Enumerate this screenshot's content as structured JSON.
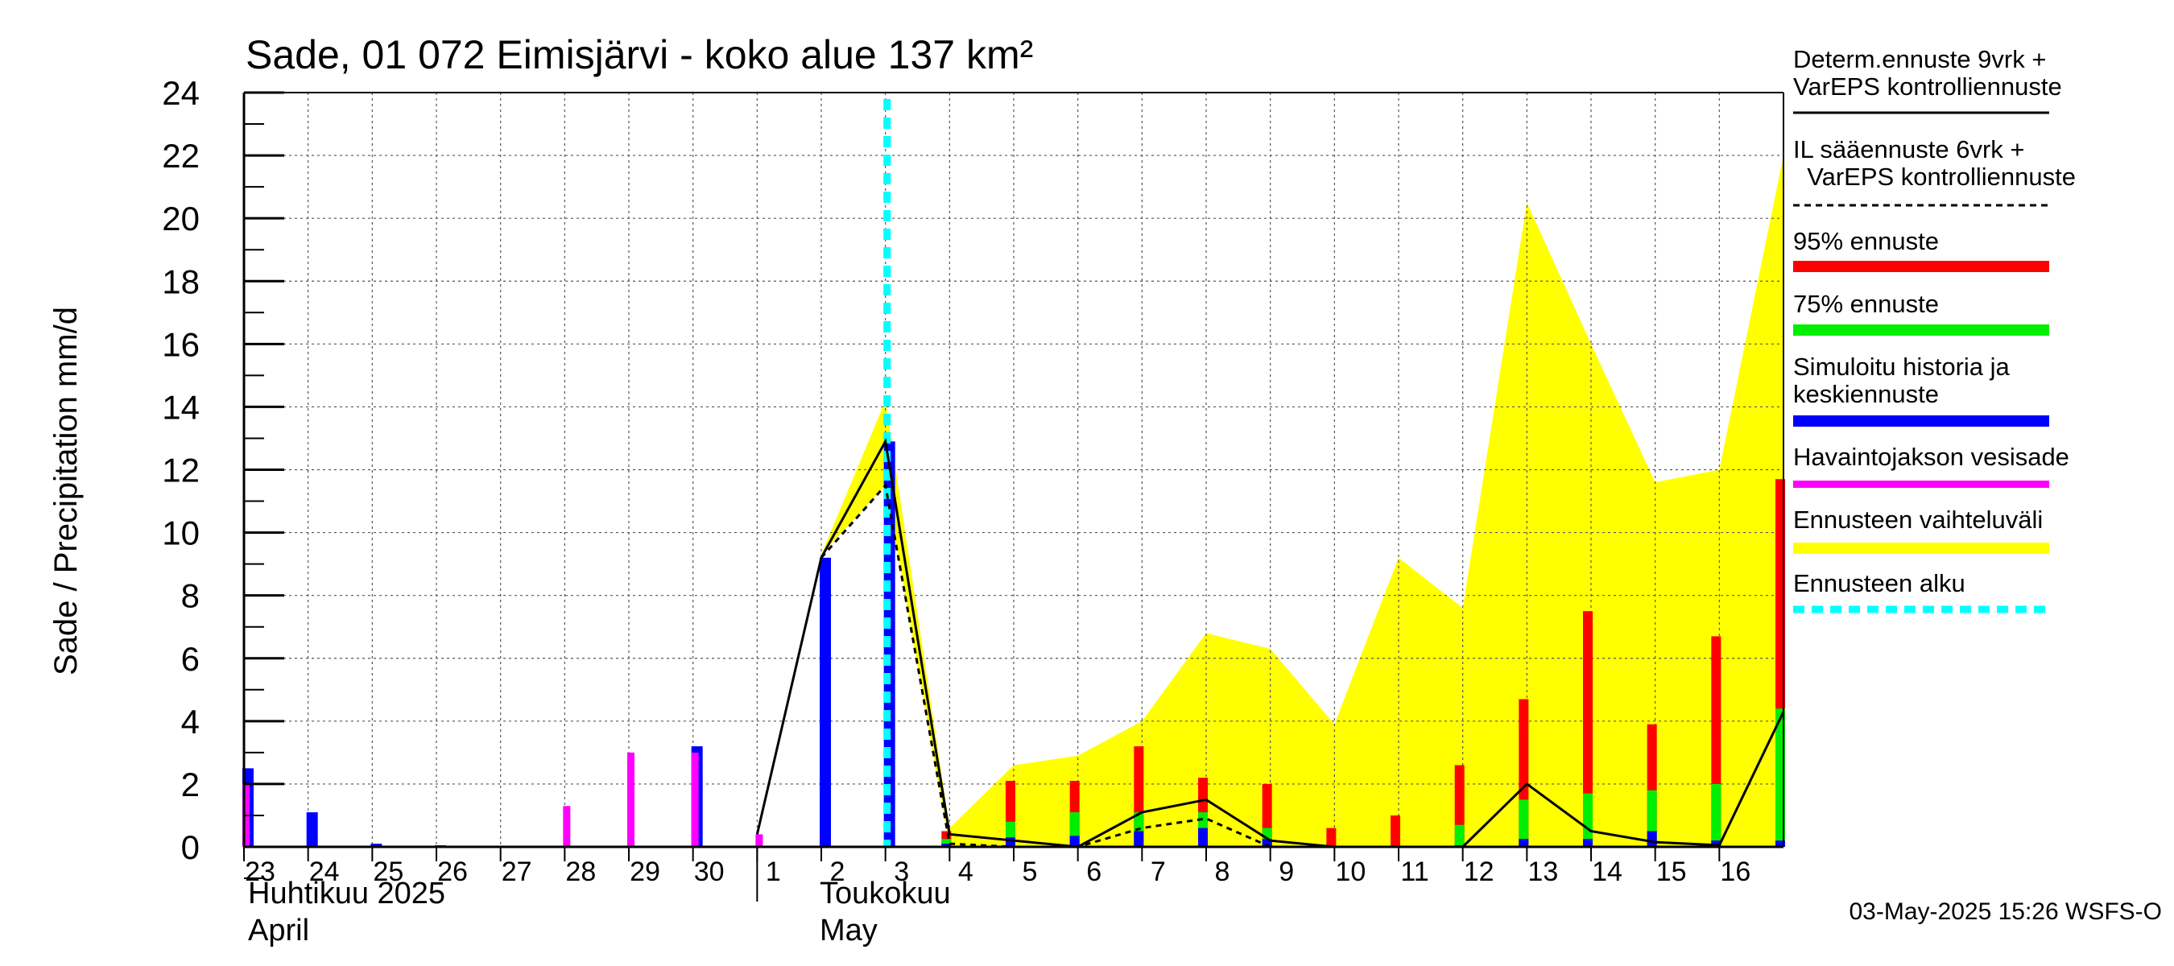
{
  "chart_data": {
    "type": "bar",
    "title": "Sade, 01 072 Eimisjärvi - koko alue 137 km²",
    "ylabel": "Sade / Precipitation   mm/d",
    "ylim": [
      0,
      24
    ],
    "yticks": [
      "0",
      "2",
      "4",
      "6",
      "8",
      "10",
      "12",
      "14",
      "16",
      "18",
      "20",
      "22",
      "24"
    ],
    "grid": true,
    "legend_position": "right",
    "day_labels": [
      "23",
      "24",
      "25",
      "26",
      "27",
      "28",
      "29",
      "30",
      "1",
      "2",
      "3",
      "4",
      "5",
      "6",
      "7",
      "8",
      "9",
      "10",
      "11",
      "12",
      "13",
      "14",
      "15",
      "16"
    ],
    "month_labels": {
      "april_fi": "Huhtikuu  2025",
      "april_en": "April",
      "may_fi": "Toukokuu",
      "may_en": "May"
    },
    "forecast_start_day": 10,
    "history": {
      "observed": [
        2.0,
        0,
        0,
        0,
        0,
        1.3,
        3.0,
        3.0,
        0.4,
        null,
        null
      ],
      "simulated": [
        2.5,
        1.1,
        0.1,
        0.05,
        0,
        0,
        0,
        3.2,
        0,
        9.2,
        12.9
      ]
    },
    "forecast": {
      "days": [
        11.0,
        12.0,
        13.0,
        14.0,
        15.0,
        16.0,
        17.0,
        18.0,
        19.0,
        20.0,
        21.0,
        22.0,
        23.0,
        24.0
      ],
      "p95": [
        0.5,
        2.1,
        2.1,
        3.2,
        2.2,
        2.0,
        0.6,
        1.0,
        2.6,
        4.7,
        7.5,
        3.9,
        6.7,
        11.7
      ],
      "p75": [
        0.25,
        0.8,
        1.1,
        1.1,
        1.1,
        0.6,
        0,
        0,
        0.7,
        1.5,
        1.7,
        1.8,
        2.0,
        4.4
      ],
      "median": [
        0.1,
        0.3,
        0.35,
        0.5,
        0.6,
        0.25,
        0,
        0,
        0.05,
        0.25,
        0.25,
        0.5,
        0.2,
        0.2
      ]
    },
    "range_band": {
      "x": [
        9.0,
        10.0,
        11.0,
        12.0,
        13.0,
        14.0,
        15.0,
        16.0,
        17.0,
        18.0,
        19.0,
        20.0,
        21.0,
        22.0,
        23.0,
        24.0
      ],
      "upper": [
        9.3,
        14.2,
        0.6,
        2.6,
        2.9,
        4.0,
        6.8,
        6.3,
        3.9,
        9.2,
        7.6,
        20.5,
        16.0,
        11.6,
        12.0,
        22.0
      ],
      "lower": [
        9.3,
        11.5,
        0,
        0,
        0,
        0,
        0,
        0,
        0,
        0,
        0,
        0,
        0,
        0,
        0,
        0
      ]
    },
    "deterministic_line": {
      "x": [
        8.0,
        9.0,
        10.0,
        11.0,
        12.0,
        13.0,
        14.0,
        15.0,
        16.0,
        17.0,
        18.0,
        19.0,
        20.0,
        21.0,
        22.0,
        23.0,
        24.0
      ],
      "y": [
        0.4,
        9.2,
        12.9,
        0.4,
        0.2,
        0,
        1.1,
        1.5,
        0.2,
        0,
        0,
        0,
        2.0,
        0.5,
        0.15,
        0.05,
        4.3
      ]
    },
    "il_line": {
      "x": [
        9.0,
        10.0,
        11.0,
        12.0,
        13.0,
        14.0,
        15.0,
        16.0
      ],
      "y": [
        9.2,
        11.5,
        0.1,
        0,
        0,
        0.6,
        0.9,
        0
      ]
    },
    "legend": [
      {
        "label": "Determ.ennuste 9vrk +",
        "label2": "VarEPS kontrolliennuste",
        "style": "solid",
        "color": "#000000"
      },
      {
        "label": "IL sääennuste 6vrk  +",
        "label2": "  VarEPS kontrolliennuste",
        "style": "dashed",
        "color": "#000000"
      },
      {
        "label": "95% ennuste",
        "style": "bar",
        "color": "#ff0000"
      },
      {
        "label": "75% ennuste",
        "style": "bar",
        "color": "#00ee00"
      },
      {
        "label": "Simuloitu historia ja",
        "label2": "keskiennuste",
        "style": "bar",
        "color": "#0000ff"
      },
      {
        "label": "Havaintojakson vesisade",
        "style": "bar",
        "color": "#ff00ff"
      },
      {
        "label": "Ennusteen vaihteluväli",
        "style": "bar",
        "color": "#ffff00"
      },
      {
        "label": "Ennusteen alku",
        "style": "dashed-bar",
        "color": "#00ffff"
      }
    ],
    "timestamp": "03-May-2025 15:26 WSFS-O"
  }
}
